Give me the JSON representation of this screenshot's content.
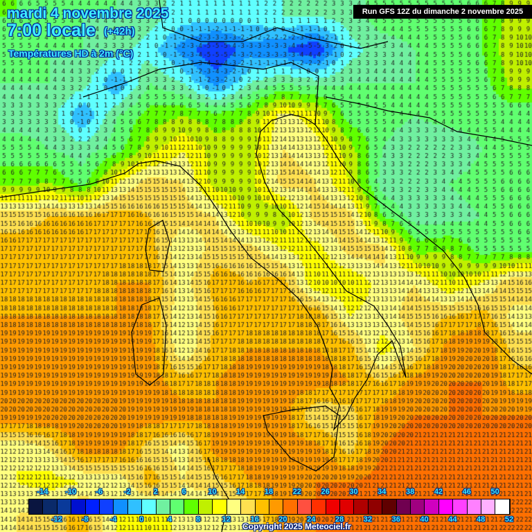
{
  "header": {
    "date": "mardi 4 novembre 2025",
    "time": "7:00 locale",
    "lead": "(+42h)",
    "variable": "Températures HD à 2m (°C)",
    "run": "Run GFS 12Z du dimanche 2 novembre 2025"
  },
  "footer": {
    "copyright": "Copyright 2025 Meteociel.fr"
  },
  "legend": {
    "min": -16,
    "step": 2,
    "colors": [
      "#0a1540",
      "#0a2a6a",
      "#0a3a9a",
      "#0010d0",
      "#0020ff",
      "#1040ff",
      "#1090ff",
      "#30c0ff",
      "#60ffff",
      "#70f0a0",
      "#60ff70",
      "#60ff00",
      "#c0f000",
      "#ffff00",
      "#ffff80",
      "#ffe050",
      "#ffc000",
      "#ff9a00",
      "#ff7000",
      "#ff5040",
      "#ff3000",
      "#f00000",
      "#e00000",
      "#b00000",
      "#900000",
      "#600000",
      "#700050",
      "#a00080",
      "#d000c0",
      "#ff00ff",
      "#ff40ff",
      "#ff80ff",
      "#ffb0ff",
      "#ffffff"
    ],
    "top_labels": [
      "-14",
      "-10",
      "-6",
      "-2",
      "2",
      "6",
      "10",
      "14",
      "18",
      "22",
      "26",
      "30",
      "34",
      "38",
      "42",
      "46",
      "50"
    ],
    "bottom_labels": [
      "-12",
      "-8",
      "-4",
      "0",
      "4",
      "8",
      "12",
      "16",
      "20",
      "24",
      "28",
      "32",
      "36",
      "40",
      "44",
      "48",
      "52"
    ]
  },
  "temperature_grid_c": [
    [
      6,
      5,
      4,
      4,
      3,
      1,
      1,
      1,
      2,
      2,
      3,
      5,
      5,
      5,
      6,
      9
    ],
    [
      5,
      4,
      4,
      3,
      1,
      -3,
      -6,
      -3,
      -4,
      -6,
      1,
      3,
      4,
      5,
      6,
      10
    ],
    [
      4,
      4,
      3,
      -2,
      4,
      2,
      -3,
      2,
      4,
      3,
      4,
      4,
      4,
      5,
      5,
      9
    ],
    [
      3,
      3,
      -2,
      4,
      7,
      8,
      7,
      8,
      13,
      11,
      5,
      5,
      4,
      5,
      5,
      4
    ],
    [
      5,
      4,
      3,
      5,
      9,
      12,
      9,
      9,
      14,
      13,
      9,
      4,
      2,
      2,
      4,
      5
    ],
    [
      7,
      8,
      5,
      12,
      15,
      14,
      9,
      9,
      15,
      14,
      10,
      3,
      2,
      4,
      5,
      6
    ],
    [
      15,
      16,
      16,
      17,
      16,
      15,
      14,
      9,
      8,
      15,
      15,
      6,
      3,
      3,
      4,
      6
    ],
    [
      17,
      17,
      17,
      17,
      17,
      12,
      15,
      15,
      12,
      11,
      15,
      15,
      7,
      8,
      5,
      5
    ],
    [
      17,
      17,
      17,
      18,
      18,
      13,
      17,
      16,
      17,
      10,
      10,
      13,
      14,
      10,
      12,
      16
    ],
    [
      18,
      18,
      18,
      18,
      18,
      12,
      16,
      17,
      17,
      18,
      12,
      13,
      15,
      16,
      17,
      13
    ],
    [
      19,
      19,
      19,
      19,
      19,
      12,
      17,
      18,
      18,
      18,
      17,
      11,
      14,
      19,
      20,
      15
    ],
    [
      19,
      19,
      19,
      19,
      19,
      17,
      18,
      19,
      19,
      19,
      18,
      16,
      19,
      20,
      20,
      17
    ],
    [
      20,
      20,
      20,
      20,
      19,
      19,
      18,
      19,
      19,
      14,
      15,
      19,
      20,
      20,
      20,
      20
    ],
    [
      12,
      14,
      19,
      19,
      15,
      13,
      19,
      19,
      19,
      19,
      15,
      20,
      21,
      21,
      21,
      21
    ],
    [
      12,
      11,
      12,
      12,
      17,
      14,
      15,
      18,
      19,
      20,
      20,
      21,
      21,
      21,
      21,
      21
    ],
    [
      14,
      15,
      17,
      12,
      10,
      13,
      12,
      14,
      19,
      20,
      21,
      21,
      21,
      21,
      21,
      22
    ]
  ]
}
